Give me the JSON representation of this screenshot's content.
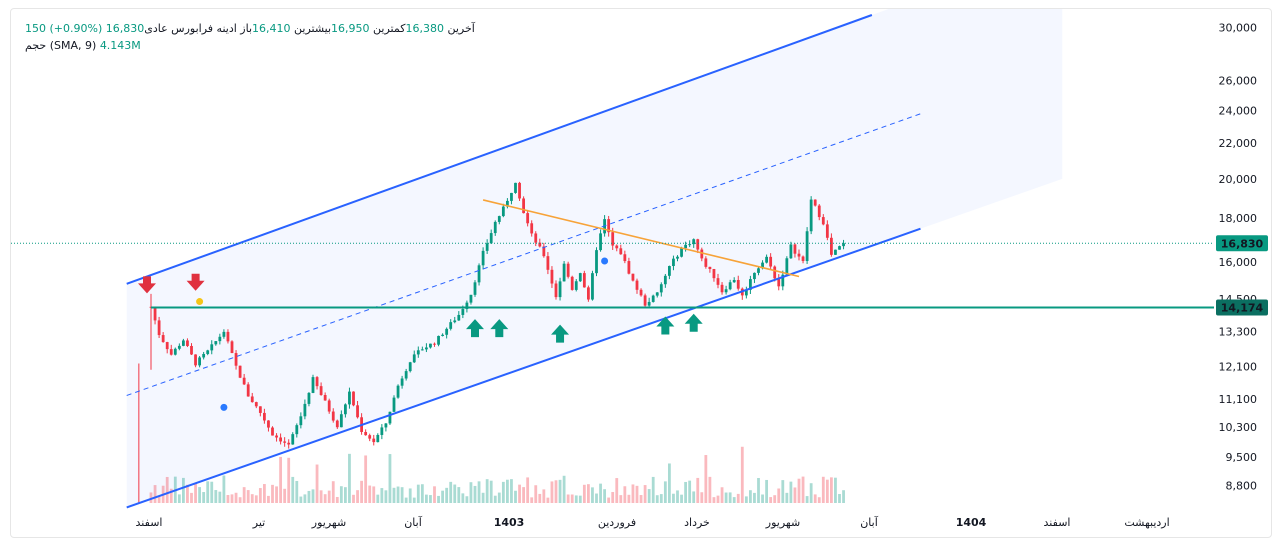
{
  "legend": {
    "symbol_name": "فرابورس عادی",
    "timeframe": "ادینه",
    "open_label": "باز",
    "open_value": "16,410",
    "high_label": "بیشترین",
    "high_value": "16,950",
    "low_label": "کمترین",
    "low_value": "16,380",
    "close_label": "آخرین",
    "close_value": "16,830",
    "change": "150 (+0.90%)",
    "volume_label": "حجم",
    "volume_params": "(SMA, 9)",
    "volume_value": "4.143M"
  },
  "colors": {
    "up": "#089981",
    "down": "#f23645",
    "channel": "#2962ff",
    "trendline": "#f7a339",
    "support": "#089981",
    "price_badge": "#089981",
    "sell_arrow": "#e0313f",
    "buy_arrow": "#089981"
  },
  "chart_data": {
    "type": "candlestick",
    "y_scale": "log",
    "ylim": [
      8400,
      31000
    ],
    "yticks": [
      "30,000",
      "26,000",
      "24,000",
      "22,000",
      "20,000",
      "18,000",
      "16,000",
      "14,500",
      "13,300",
      "12,100",
      "11,100",
      "10,300",
      "9,500",
      "8,800"
    ],
    "ytick_values": [
      30000,
      26000,
      24000,
      22000,
      20000,
      18000,
      16000,
      14500,
      13300,
      12100,
      11100,
      10300,
      9500,
      8800
    ],
    "xticks": [
      {
        "label": "اسفند",
        "bold": false
      },
      {
        "label": "تیر",
        "bold": false
      },
      {
        "label": "شهریور",
        "bold": false
      },
      {
        "label": "آبان",
        "bold": false
      },
      {
        "label": "1403",
        "bold": true
      },
      {
        "label": "فروردین",
        "bold": false
      },
      {
        "label": "خرداد",
        "bold": false
      },
      {
        "label": "شهریور",
        "bold": false
      },
      {
        "label": "آبان",
        "bold": false
      },
      {
        "label": "1404",
        "bold": true
      },
      {
        "label": "اسفند",
        "bold": false
      },
      {
        "label": "اردیبهشت",
        "bold": false
      }
    ],
    "last_price": {
      "value": 16830,
      "label": "16,830"
    },
    "support_level": {
      "value": 14174,
      "label": "14,174"
    },
    "price_path": [
      [
        0,
        14200
      ],
      [
        2,
        13200
      ],
      [
        5,
        12500
      ],
      [
        8,
        13000
      ],
      [
        11,
        12200
      ],
      [
        14,
        12600
      ],
      [
        18,
        13300
      ],
      [
        21,
        12100
      ],
      [
        24,
        11200
      ],
      [
        27,
        10700
      ],
      [
        30,
        10100
      ],
      [
        34,
        9800
      ],
      [
        37,
        10600
      ],
      [
        40,
        11700
      ],
      [
        43,
        11000
      ],
      [
        46,
        10300
      ],
      [
        49,
        11300
      ],
      [
        52,
        10200
      ],
      [
        55,
        9900
      ],
      [
        58,
        10400
      ],
      [
        61,
        11500
      ],
      [
        64,
        12300
      ],
      [
        67,
        12700
      ],
      [
        70,
        12900
      ],
      [
        73,
        13400
      ],
      [
        76,
        13900
      ],
      [
        79,
        14700
      ],
      [
        82,
        16400
      ],
      [
        85,
        17800
      ],
      [
        88,
        18800
      ],
      [
        90,
        19900
      ],
      [
        92,
        18300
      ],
      [
        94,
        17200
      ],
      [
        97,
        16300
      ],
      [
        100,
        14600
      ],
      [
        102,
        15900
      ],
      [
        104,
        14900
      ],
      [
        106,
        15600
      ],
      [
        108,
        14400
      ],
      [
        110,
        16600
      ],
      [
        112,
        17900
      ],
      [
        114,
        16700
      ],
      [
        116,
        16400
      ],
      [
        119,
        15200
      ],
      [
        122,
        14300
      ],
      [
        125,
        14700
      ],
      [
        128,
        15800
      ],
      [
        131,
        16600
      ],
      [
        134,
        17000
      ],
      [
        136,
        16100
      ],
      [
        139,
        15400
      ],
      [
        141,
        14800
      ],
      [
        144,
        15300
      ],
      [
        146,
        14600
      ],
      [
        149,
        15600
      ],
      [
        152,
        16200
      ],
      [
        155,
        15000
      ],
      [
        158,
        16700
      ],
      [
        161,
        16000
      ],
      [
        163,
        18900
      ],
      [
        166,
        17800
      ],
      [
        168,
        16300
      ],
      [
        171,
        16830
      ]
    ],
    "volume": {
      "ylim": [
        0,
        4.5
      ]
    },
    "channel": {
      "upper": [
        [
          -6,
          15100
        ],
        [
          178,
          31000
        ]
      ],
      "lower": [
        [
          -6,
          8300
        ],
        [
          190,
          17500
        ]
      ],
      "mid": [
        [
          -6,
          11200
        ],
        [
          190,
          23800
        ]
      ]
    },
    "trendline": [
      [
        82,
        18900
      ],
      [
        160,
        15400
      ]
    ],
    "annotations": {
      "sell_arrows": [
        {
          "i": 0,
          "price": 14800
        },
        {
          "i": 12,
          "price": 14900
        }
      ],
      "buy_arrows": [
        {
          "i": 80,
          "price": 13700
        },
        {
          "i": 86,
          "price": 13700
        },
        {
          "i": 101,
          "price": 13500
        },
        {
          "i": 127,
          "price": 13800
        },
        {
          "i": 134,
          "price": 13900
        }
      ],
      "dots": [
        {
          "i": 12,
          "price": 14400,
          "color": "#f5c518"
        },
        {
          "i": 18,
          "price": 10850,
          "color": "#2979ff"
        },
        {
          "i": 112,
          "price": 16050,
          "color": "#2979ff"
        }
      ]
    }
  }
}
